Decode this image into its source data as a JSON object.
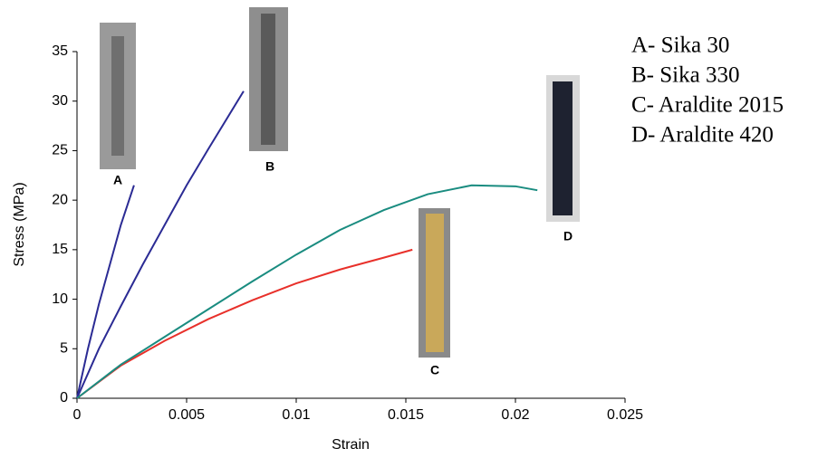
{
  "chart_data": {
    "type": "line",
    "xlabel": "Strain",
    "ylabel": "Stress (MPa)",
    "xlim": [
      0,
      0.025
    ],
    "xticks": [
      0,
      0.005,
      0.01,
      0.015,
      0.02,
      0.025
    ],
    "ylim": [
      0,
      35
    ],
    "yticks": [
      0,
      5,
      10,
      15,
      20,
      25,
      30,
      35
    ],
    "grid": false,
    "series": [
      {
        "name": "A- Sika 30",
        "color": "#2b2b94",
        "x": [
          0,
          0.0005,
          0.001,
          0.0015,
          0.002,
          0.0026
        ],
        "y": [
          0,
          5,
          9.5,
          13.5,
          17.5,
          21.5
        ]
      },
      {
        "name": "B- Sika 330",
        "color": "#2b2b94",
        "x": [
          0,
          0.001,
          0.002,
          0.003,
          0.004,
          0.005,
          0.006,
          0.0076
        ],
        "y": [
          0,
          5,
          9.3,
          13.5,
          17.5,
          21.5,
          25.2,
          31
        ]
      },
      {
        "name": "C- Araldite 2015",
        "color": "#e8302a",
        "x": [
          0,
          0.002,
          0.004,
          0.006,
          0.008,
          0.01,
          0.012,
          0.014,
          0.0153
        ],
        "y": [
          0,
          3.3,
          5.8,
          8,
          9.9,
          11.6,
          13,
          14.2,
          15
        ]
      },
      {
        "name": "D- Araldite 420",
        "color": "#1a8c80",
        "x": [
          0,
          0.002,
          0.004,
          0.006,
          0.008,
          0.01,
          0.012,
          0.014,
          0.016,
          0.018,
          0.02,
          0.021
        ],
        "y": [
          0,
          3.4,
          6.2,
          9,
          11.8,
          14.5,
          17,
          19,
          20.6,
          21.5,
          21.4,
          21
        ]
      }
    ],
    "photo_labels": [
      "A",
      "B",
      "C",
      "D"
    ]
  }
}
